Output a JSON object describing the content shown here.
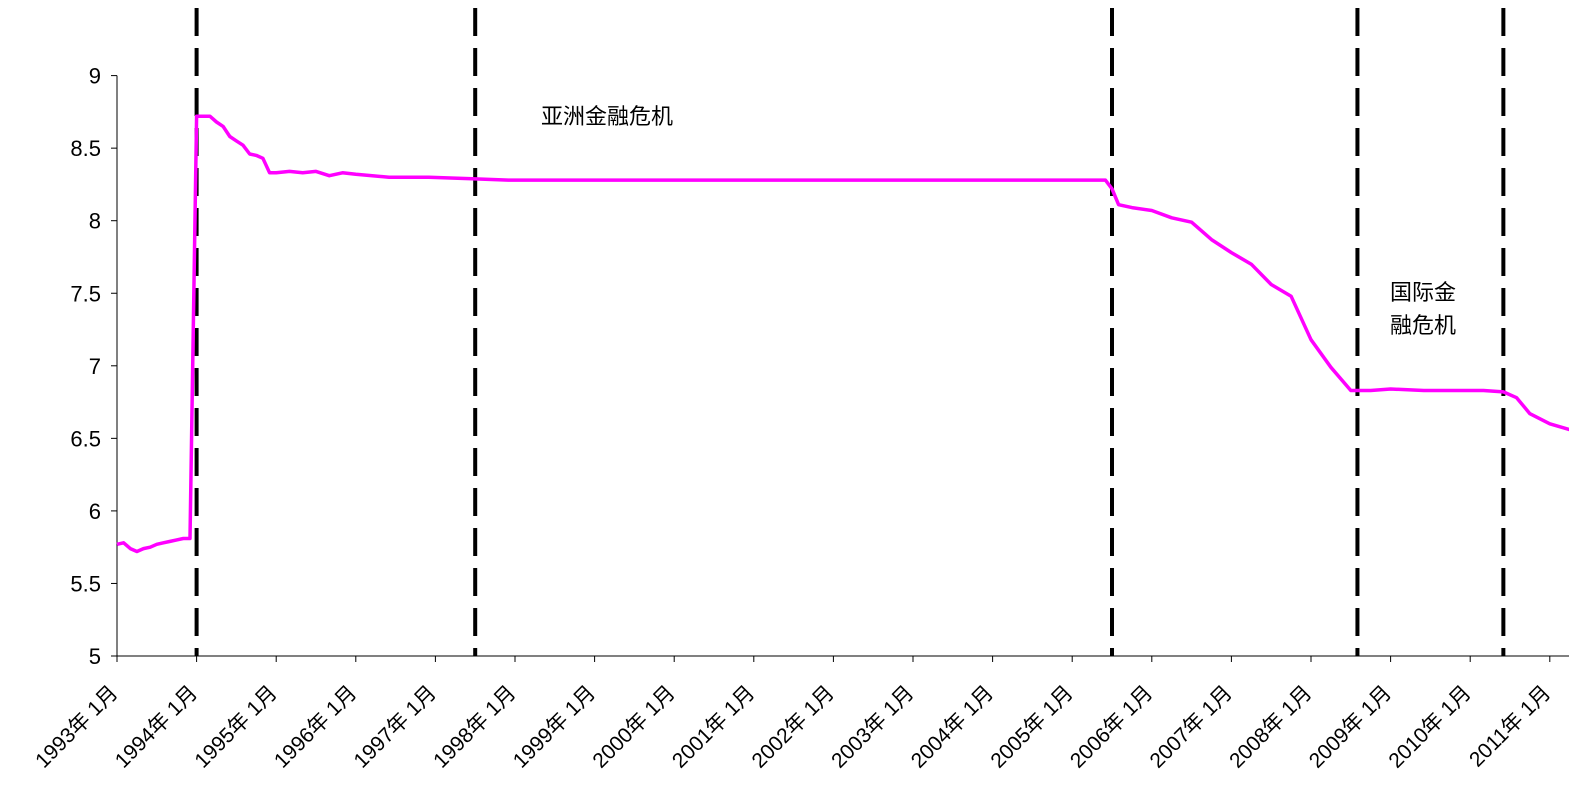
{
  "chart_data": {
    "type": "line",
    "title": "",
    "xlabel": "",
    "ylabel": "",
    "ylim": [
      5,
      9
    ],
    "yticks": [
      "5",
      "5.5",
      "6",
      "6.5",
      "7",
      "7.5",
      "8",
      "8.5",
      "9"
    ],
    "xticks": [
      "1993年 1月",
      "1994年 1月",
      "1995年 1月",
      "1996年 1月",
      "1997年 1月",
      "1998年 1月",
      "1999年 1月",
      "2000年 1月",
      "2001年 1月",
      "2002年 1月",
      "2003年 1月",
      "2004年 1月",
      "2005年 1月",
      "2006年 1月",
      "2007年 1月",
      "2008年 1月",
      "2009年 1月",
      "2010年 1月",
      "2011年 1月"
    ],
    "grid": false,
    "legend": "none",
    "series": [
      {
        "color": "#ff00ff",
        "points": [
          [
            "1993-01",
            5.77
          ],
          [
            "1993-02",
            5.78
          ],
          [
            "1993-03",
            5.74
          ],
          [
            "1993-04",
            5.72
          ],
          [
            "1993-05",
            5.74
          ],
          [
            "1993-06",
            5.75
          ],
          [
            "1993-07",
            5.77
          ],
          [
            "1993-08",
            5.78
          ],
          [
            "1993-09",
            5.79
          ],
          [
            "1993-10",
            5.8
          ],
          [
            "1993-11",
            5.81
          ],
          [
            "1993-12",
            5.81
          ],
          [
            "1994-01",
            8.72
          ],
          [
            "1994-02",
            8.72
          ],
          [
            "1994-03",
            8.72
          ],
          [
            "1994-04",
            8.68
          ],
          [
            "1994-05",
            8.65
          ],
          [
            "1994-06",
            8.58
          ],
          [
            "1994-07",
            8.55
          ],
          [
            "1994-08",
            8.52
          ],
          [
            "1994-09",
            8.46
          ],
          [
            "1994-10",
            8.45
          ],
          [
            "1994-11",
            8.43
          ],
          [
            "1994-12",
            8.33
          ],
          [
            "1995-01",
            8.33
          ],
          [
            "1995-03",
            8.34
          ],
          [
            "1995-05",
            8.33
          ],
          [
            "1995-07",
            8.34
          ],
          [
            "1995-09",
            8.31
          ],
          [
            "1995-11",
            8.33
          ],
          [
            "1996-01",
            8.32
          ],
          [
            "1996-06",
            8.3
          ],
          [
            "1996-12",
            8.3
          ],
          [
            "1997-06",
            8.29
          ],
          [
            "1997-12",
            8.28
          ],
          [
            "1998-06",
            8.28
          ],
          [
            "1999-06",
            8.28
          ],
          [
            "2000-06",
            8.28
          ],
          [
            "2001-06",
            8.28
          ],
          [
            "2002-06",
            8.28
          ],
          [
            "2003-06",
            8.28
          ],
          [
            "2004-06",
            8.28
          ],
          [
            "2004-12",
            8.28
          ],
          [
            "2005-06",
            8.28
          ],
          [
            "2005-07",
            8.22
          ],
          [
            "2005-08",
            8.11
          ],
          [
            "2005-10",
            8.09
          ],
          [
            "2006-01",
            8.07
          ],
          [
            "2006-04",
            8.02
          ],
          [
            "2006-07",
            7.99
          ],
          [
            "2006-10",
            7.87
          ],
          [
            "2007-01",
            7.78
          ],
          [
            "2007-04",
            7.7
          ],
          [
            "2007-07",
            7.56
          ],
          [
            "2007-10",
            7.48
          ],
          [
            "2008-01",
            7.18
          ],
          [
            "2008-04",
            6.99
          ],
          [
            "2008-07",
            6.83
          ],
          [
            "2008-10",
            6.83
          ],
          [
            "2009-01",
            6.84
          ],
          [
            "2009-06",
            6.83
          ],
          [
            "2009-12",
            6.83
          ],
          [
            "2010-03",
            6.83
          ],
          [
            "2010-06",
            6.82
          ],
          [
            "2010-08",
            6.78
          ],
          [
            "2010-10",
            6.67
          ],
          [
            "2011-01",
            6.6
          ],
          [
            "2011-04",
            6.56
          ]
        ]
      }
    ],
    "event_lines": [
      "1994-01",
      "1997-07",
      "2005-07",
      "2008-08",
      "2010-06"
    ],
    "annotations": [
      {
        "id": "asia",
        "lines": [
          "亚洲金融危机"
        ]
      },
      {
        "id": "intl",
        "lines": [
          "国际金",
          "融危机"
        ]
      }
    ]
  }
}
